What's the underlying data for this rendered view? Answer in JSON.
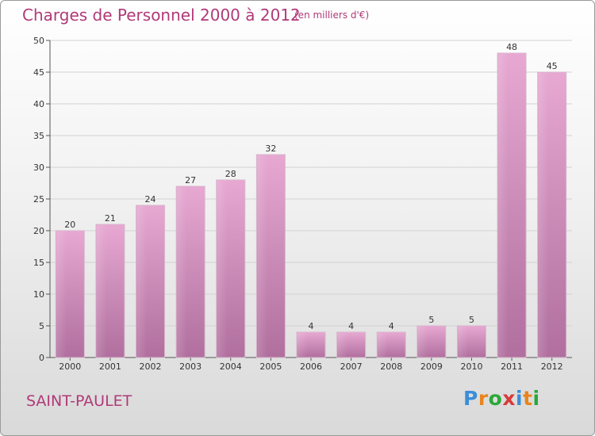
{
  "title": "Charges de Personnel 2000 à 2012",
  "subtitle": "(en milliers d'€)",
  "place": "SAINT-PAULET",
  "logo": {
    "text": "Proxiti",
    "colors": [
      "#3a8ed8",
      "#e8851e",
      "#2aa838",
      "#d83a3a",
      "#3a8ed8",
      "#e8851e",
      "#2aa838"
    ]
  },
  "colors": {
    "accent": "#b03a78",
    "bar_top": "#e7a8d2",
    "bar_bottom": "#b06f9e"
  },
  "chart_data": {
    "type": "bar",
    "categories": [
      "2000",
      "2001",
      "2002",
      "2003",
      "2004",
      "2005",
      "2006",
      "2007",
      "2008",
      "2009",
      "2010",
      "2011",
      "2012"
    ],
    "values": [
      20,
      21,
      24,
      27,
      28,
      32,
      4,
      4,
      4,
      5,
      5,
      48,
      45
    ],
    "title": "Charges de Personnel 2000 à 2012",
    "xlabel": "",
    "ylabel": "",
    "ylim": [
      0,
      50
    ],
    "yticks": [
      0,
      5,
      10,
      15,
      20,
      25,
      30,
      35,
      40,
      45,
      50
    ],
    "grid": true
  }
}
